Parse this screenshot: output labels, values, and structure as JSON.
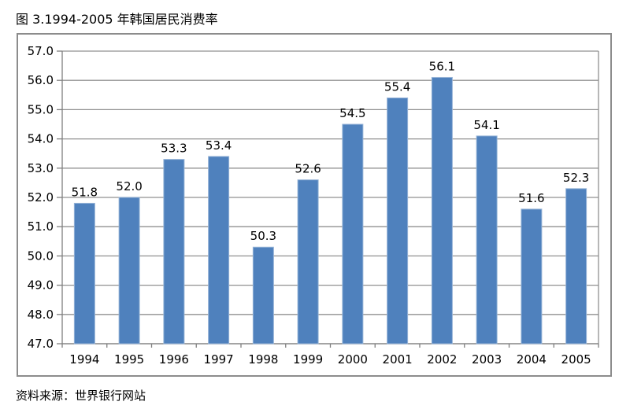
{
  "title": "图 3.1994-2005 年韩国居民消费率",
  "source": "资料来源：世界银行网站",
  "chart_data": {
    "type": "bar",
    "title": "图 3.1994-2005 年韩国居民消费率",
    "xlabel": "",
    "ylabel": "",
    "categories": [
      "1994",
      "1995",
      "1996",
      "1997",
      "1998",
      "1999",
      "2000",
      "2001",
      "2002",
      "2003",
      "2004",
      "2005"
    ],
    "values": [
      51.8,
      52.0,
      53.3,
      53.4,
      50.3,
      52.6,
      54.5,
      55.4,
      56.1,
      54.1,
      51.6,
      52.3
    ],
    "data_labels": [
      "51.8",
      "52.0",
      "53.3",
      "53.4",
      "50.3",
      "52.6",
      "54.5",
      "55.4",
      "56.1",
      "54.1",
      "51.6",
      "52.3"
    ],
    "ylim": [
      47.0,
      57.0
    ],
    "ytick_step": 1.0,
    "ytick_labels": [
      "47.0",
      "48.0",
      "49.0",
      "50.0",
      "51.0",
      "52.0",
      "53.0",
      "54.0",
      "55.0",
      "56.0",
      "57.0"
    ],
    "grid": "horizontal",
    "legend": "none",
    "bar_color": "#4F81BD",
    "bar_border_color": "#95B3D7",
    "gridline_color": "#909090",
    "axis_color": "#7F7F7F",
    "frame_border_color": "#8C8C8C",
    "label_color": "#000000",
    "source_note": "资料来源：世界银行网站"
  }
}
